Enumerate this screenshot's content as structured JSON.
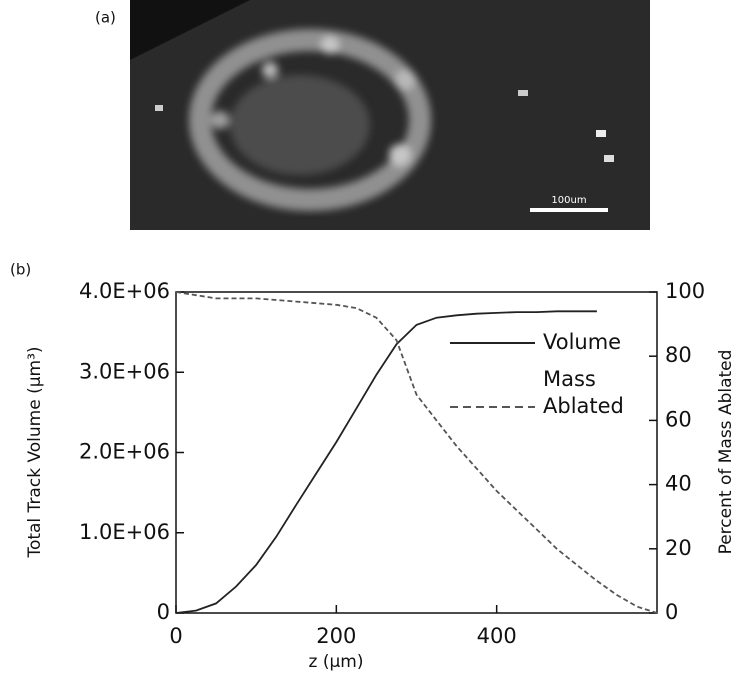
{
  "figure": {
    "panel_a_label": "(a)",
    "scale_bar_label": "100um",
    "panel_b_label": "(b)"
  },
  "chart_data": {
    "type": "line",
    "x_label": "z (µm)",
    "y_label": "Total Track Volume (µm³)",
    "y2_label": "Percent of Mass Ablated",
    "x": [
      0,
      25,
      50,
      75,
      100,
      125,
      150,
      175,
      200,
      225,
      250,
      275,
      300,
      325,
      350,
      375,
      400,
      425,
      450,
      475,
      500,
      525,
      550,
      575,
      600
    ],
    "series": [
      {
        "name": "Volume",
        "color": "#222222",
        "dash": false,
        "values": [
          0,
          30000,
          120000,
          330000,
          600000,
          950000,
          1350000,
          1740000,
          2130000,
          2550000,
          2970000,
          3350000,
          3590000,
          3680000,
          3710000,
          3730000,
          3740000,
          3750000,
          3750000,
          3760000,
          3760000,
          3760000,
          null,
          null,
          null
        ]
      },
      {
        "name": "Mass Ablated",
        "color": "#555555",
        "dash": true,
        "axis": "y2",
        "values": [
          100,
          99,
          98,
          98,
          98,
          97.5,
          97,
          96.5,
          96,
          95,
          92,
          85,
          68,
          60,
          52,
          45,
          38,
          32,
          26,
          20,
          15,
          10,
          5.6,
          2,
          0
        ]
      }
    ],
    "xlim": [
      0,
      600
    ],
    "xticks": [
      0,
      200,
      400
    ],
    "ylim": [
      0,
      4000000
    ],
    "yticks": [
      0,
      {
        "value": 1000000,
        "label": "1.0E+06"
      },
      {
        "value": 2000000,
        "label": "2.0E+06"
      },
      {
        "value": 3000000,
        "label": "3.0E+06"
      },
      {
        "value": 4000000,
        "label": "4.0E+06"
      }
    ],
    "y2lim": [
      0,
      100
    ],
    "y2ticks": [
      0,
      20,
      40,
      60,
      80,
      100
    ]
  }
}
